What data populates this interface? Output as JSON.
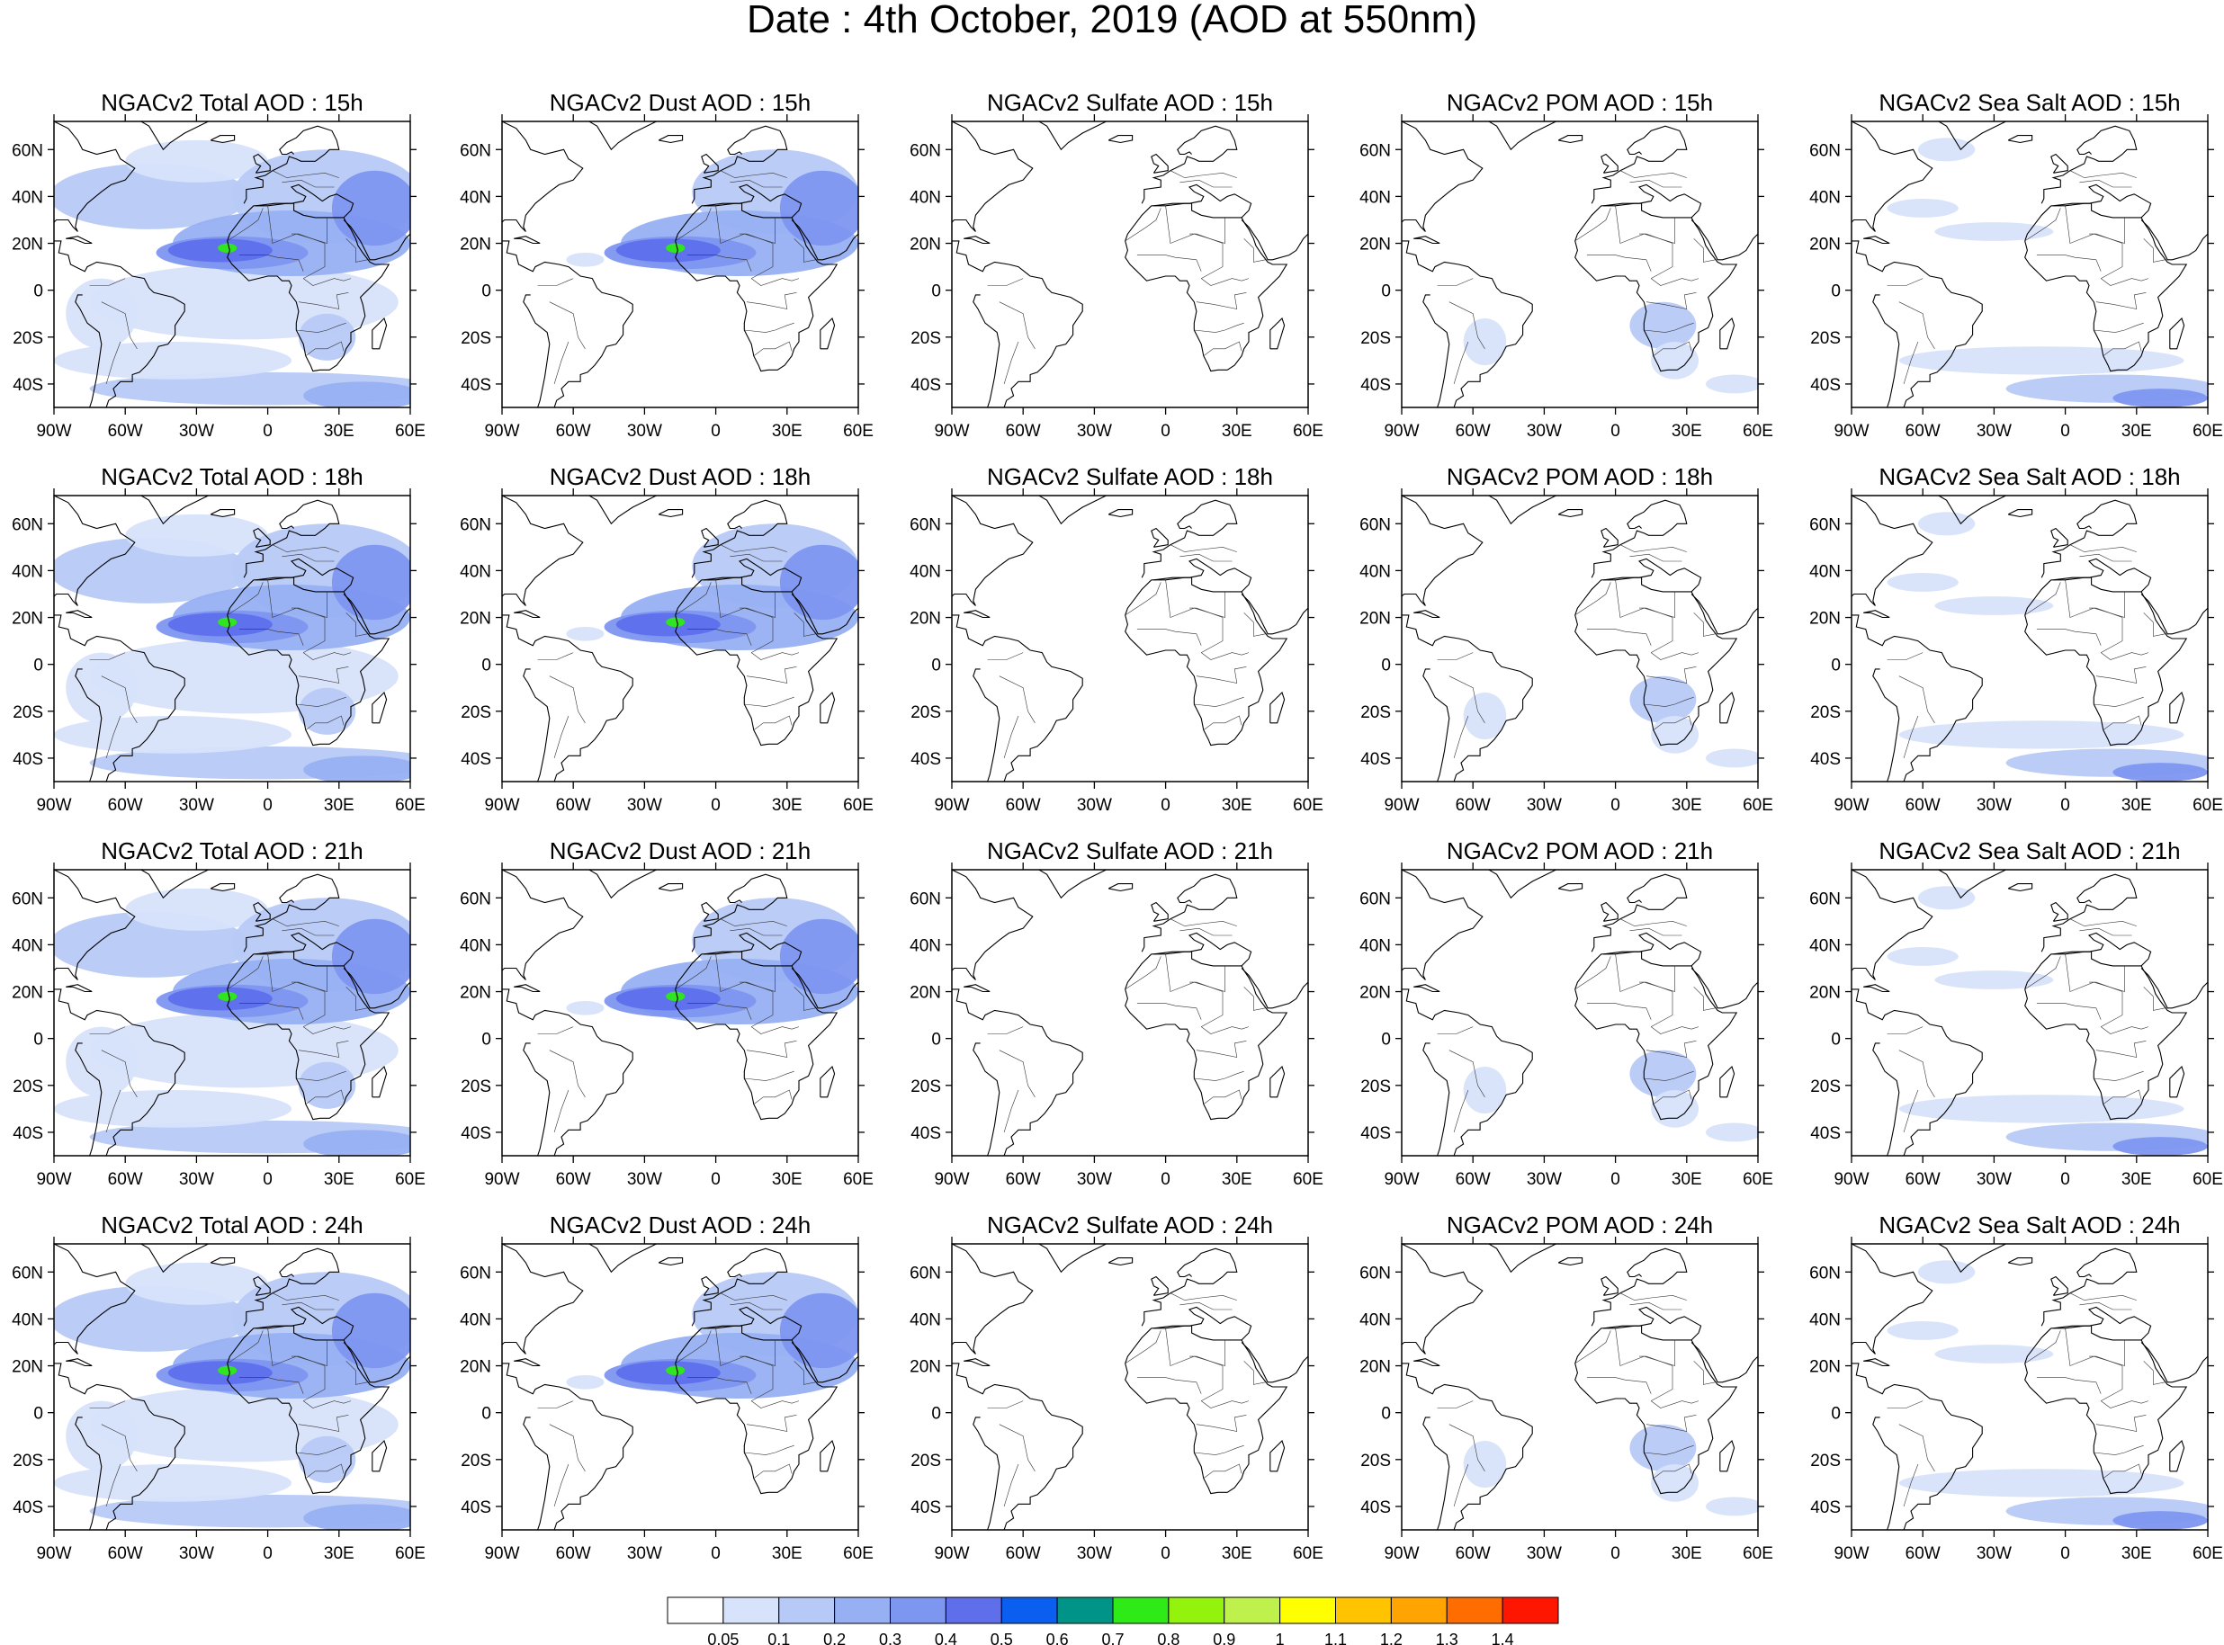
{
  "title": "Date : 4th October, 2019 (AOD at 550nm)",
  "lat_ticks": [
    "60N",
    "40N",
    "20N",
    "0",
    "20S",
    "40S"
  ],
  "lon_ticks": [
    "90W",
    "60W",
    "30W",
    "0",
    "30E",
    "60E"
  ],
  "rows": [
    [
      "NGACv2 Total AOD : 15h",
      "NGACv2 Dust AOD : 15h",
      "NGACv2 Sulfate AOD : 15h",
      "NGACv2 POM AOD : 15h",
      "NGACv2 Sea Salt AOD : 15h"
    ],
    [
      "NGACv2 Total AOD : 18h",
      "NGACv2 Dust AOD : 18h",
      "NGACv2 Sulfate AOD : 18h",
      "NGACv2 POM AOD : 18h",
      "NGACv2 Sea Salt AOD : 18h"
    ],
    [
      "NGACv2 Total AOD : 21h",
      "NGACv2 Dust AOD : 21h",
      "NGACv2 Sulfate AOD : 21h",
      "NGACv2 POM AOD : 21h",
      "NGACv2 Sea Salt AOD : 21h"
    ],
    [
      "NGACv2 Total AOD : 24h",
      "NGACv2 Dust AOD : 24h",
      "NGACv2 Sulfate AOD : 24h",
      "NGACv2 POM AOD : 24h",
      "NGACv2 Sea Salt  AOD : 24h"
    ]
  ],
  "colorbar": {
    "labels": [
      "0.05",
      "0.1",
      "0.2",
      "0.3",
      "0.4",
      "0.5",
      "0.6",
      "0.7",
      "0.8",
      "0.9",
      "1",
      "1.1",
      "1.2",
      "1.3",
      "1.4"
    ],
    "colors": [
      "#ffffff",
      "#d7e3fb",
      "#b7c9f6",
      "#97b0f3",
      "#7d96f0",
      "#5f6fec",
      "#0b5ff0",
      "#009488",
      "#2eea16",
      "#94f30c",
      "#bff14c",
      "#ffff00",
      "#ffc300",
      "#ffa400",
      "#ff6c00",
      "#ff1600"
    ]
  }
}
